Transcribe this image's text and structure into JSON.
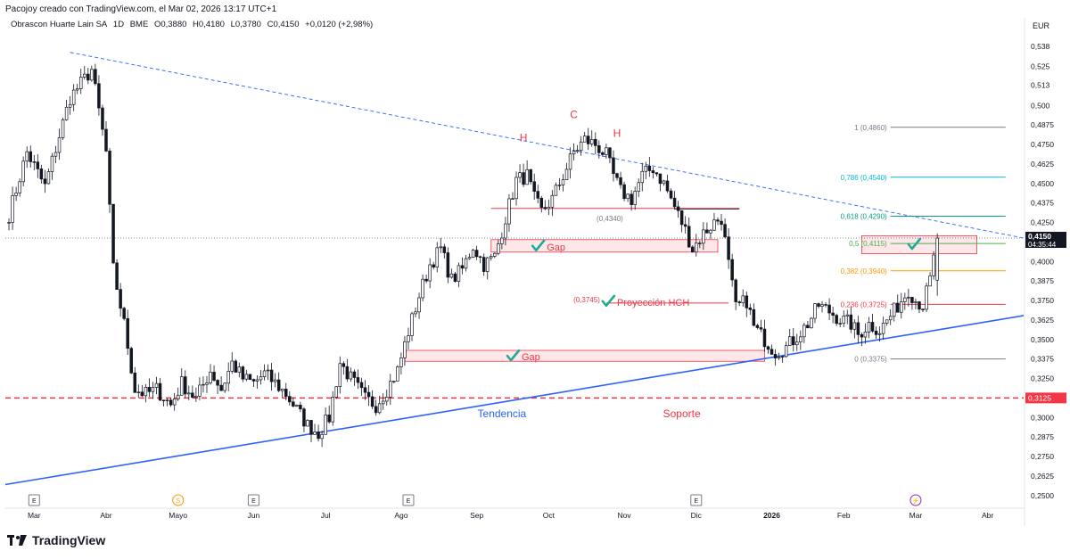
{
  "header": {
    "title": "Pacojoy creado con TradingView.com, el Mar 02, 2026 13:17 UTC+1",
    "symbol": "Obrascon Huarte Lain SA",
    "interval": "1D",
    "exchange": "BME",
    "open": "O0,3880",
    "high": "H0,4180",
    "low": "L0,3780",
    "close": "C0,4150",
    "change": "+0,0120 (+2,98%)"
  },
  "currency": "EUR",
  "current_price_label": "0,4150",
  "countdown_label": "04:35:44",
  "support_price_label": "0,3125",
  "brand": "TradingView",
  "colors": {
    "up": "#131722",
    "down": "#131722",
    "trend": "#2962ff",
    "support": "#f23645",
    "gap_fill": "rgba(242,54,69,0.12)",
    "gap_border": "#f23645",
    "check": "#22ab94",
    "annotation_red": "#f23645",
    "fib_1": "#787b86",
    "fib_786": "#00bcd4",
    "fib_618": "#089981",
    "fib_05": "#4caf50",
    "fib_382": "#ff9800",
    "fib_236": "#f23645",
    "fib_0": "#787b86"
  },
  "chart_data": {
    "type": "candlestick",
    "title": "Obrascon Huarte Lain SA · 1D · BME",
    "ylim": [
      0.243,
      0.547
    ],
    "y_ticks": [
      "0,538",
      "0,525",
      "0,513",
      "0,500",
      "0,4875",
      "0,4750",
      "0,4625",
      "0,4500",
      "0,4375",
      "0,4250",
      "0,4000",
      "0,3875",
      "0,3750",
      "0,3625",
      "0,3500",
      "0,3375",
      "0,3250",
      "0,3000",
      "0,2875",
      "0,2750",
      "0,2625",
      "0,2500"
    ],
    "y_tick_values": [
      0.538,
      0.525,
      0.513,
      0.5,
      0.4875,
      0.475,
      0.4625,
      0.45,
      0.4375,
      0.425,
      0.4,
      0.3875,
      0.375,
      0.3625,
      0.35,
      0.3375,
      0.325,
      0.3,
      0.2875,
      0.275,
      0.2625,
      0.25
    ],
    "x_labels": [
      "Mar",
      "Abr",
      "Mayo",
      "Jun",
      "Jul",
      "Ago",
      "Sep",
      "Oct",
      "Nov",
      "Dic",
      "2026",
      "Feb",
      "Mar",
      "Abr"
    ],
    "x_label_days": [
      0,
      20,
      40,
      61,
      81,
      102,
      123,
      143,
      164,
      184,
      205,
      225,
      245,
      265
    ],
    "x_range_days": [
      -8,
      275
    ],
    "key_points": [
      [
        -7,
        0.43
      ],
      [
        -2,
        0.47
      ],
      [
        3,
        0.448
      ],
      [
        10,
        0.505
      ],
      [
        16,
        0.523
      ],
      [
        20,
        0.47
      ],
      [
        22,
        0.395
      ],
      [
        25,
        0.36
      ],
      [
        28,
        0.318
      ],
      [
        31,
        0.315
      ],
      [
        34,
        0.318
      ],
      [
        38,
        0.308
      ],
      [
        41,
        0.322
      ],
      [
        45,
        0.312
      ],
      [
        49,
        0.33
      ],
      [
        52,
        0.318
      ],
      [
        55,
        0.335
      ],
      [
        58,
        0.325
      ],
      [
        61,
        0.322
      ],
      [
        64,
        0.328
      ],
      [
        67,
        0.322
      ],
      [
        70,
        0.315
      ],
      [
        73,
        0.305
      ],
      [
        76,
        0.295
      ],
      [
        79,
        0.29
      ],
      [
        82,
        0.3
      ],
      [
        85,
        0.335
      ],
      [
        88,
        0.325
      ],
      [
        92,
        0.312
      ],
      [
        95,
        0.308
      ],
      [
        98,
        0.318
      ],
      [
        101,
        0.33
      ],
      [
        104,
        0.355
      ],
      [
        107,
        0.378
      ],
      [
        110,
        0.398
      ],
      [
        113,
        0.408
      ],
      [
        116,
        0.388
      ],
      [
        119,
        0.395
      ],
      [
        122,
        0.41
      ],
      [
        125,
        0.398
      ],
      [
        128,
        0.403
      ],
      [
        131,
        0.428
      ],
      [
        134,
        0.452
      ],
      [
        137,
        0.455
      ],
      [
        139,
        0.44
      ],
      [
        141,
        0.432
      ],
      [
        144,
        0.44
      ],
      [
        147,
        0.455
      ],
      [
        150,
        0.47
      ],
      [
        153,
        0.478
      ],
      [
        156,
        0.475
      ],
      [
        159,
        0.468
      ],
      [
        161,
        0.455
      ],
      [
        163,
        0.445
      ],
      [
        166,
        0.44
      ],
      [
        169,
        0.455
      ],
      [
        172,
        0.46
      ],
      [
        175,
        0.45
      ],
      [
        178,
        0.435
      ],
      [
        181,
        0.42
      ],
      [
        183,
        0.408
      ],
      [
        186,
        0.418
      ],
      [
        189,
        0.425
      ],
      [
        191,
        0.428
      ],
      [
        193,
        0.398
      ],
      [
        195,
        0.37
      ],
      [
        198,
        0.375
      ],
      [
        200,
        0.358
      ],
      [
        203,
        0.35
      ],
      [
        206,
        0.342
      ],
      [
        209,
        0.345
      ],
      [
        212,
        0.352
      ],
      [
        215,
        0.36
      ],
      [
        218,
        0.372
      ],
      [
        221,
        0.368
      ],
      [
        224,
        0.363
      ],
      [
        227,
        0.36
      ],
      [
        229,
        0.353
      ],
      [
        232,
        0.36
      ],
      [
        235,
        0.356
      ],
      [
        238,
        0.365
      ],
      [
        241,
        0.375
      ],
      [
        243,
        0.382
      ],
      [
        245,
        0.375
      ],
      [
        247,
        0.372
      ],
      [
        249,
        0.388
      ],
      [
        251,
        0.415
      ]
    ],
    "last_candle": {
      "open": 0.388,
      "high": 0.418,
      "low": 0.378,
      "close": 0.415
    },
    "fibonacci": [
      {
        "label": "1 (0,4860)",
        "value": 0.486,
        "color_key": "fib_1"
      },
      {
        "label": "0,786 (0,4540)",
        "value": 0.454,
        "color_key": "fib_786"
      },
      {
        "label": "0,618 (0,4290)",
        "value": 0.429,
        "color_key": "fib_618"
      },
      {
        "label": "0,5 (0,4115)",
        "value": 0.4115,
        "color_key": "fib_05"
      },
      {
        "label": "0,382 (0,3940)",
        "value": 0.394,
        "color_key": "fib_382"
      },
      {
        "label": "0,236 (0,3725)",
        "value": 0.3725,
        "color_key": "fib_236"
      },
      {
        "label": "0 (0,3375)",
        "value": 0.3375,
        "color_key": "fib_0"
      }
    ],
    "trend_line": {
      "label": "Tendencia",
      "from": [
        -8,
        0.257
      ],
      "to": [
        275,
        0.3653
      ]
    },
    "upper_trend_line": {
      "from": [
        10,
        0.534
      ],
      "to": [
        275,
        0.415
      ]
    },
    "support_level": {
      "label": "Soporte",
      "value": 0.3125
    },
    "current_price_line": 0.415,
    "neckline": {
      "from": [
        127,
        0.434
      ],
      "to": [
        196,
        0.434
      ],
      "label": "(0,4340)",
      "label_day": 160
    },
    "gaps": [
      {
        "label": "Gap",
        "from_day": 127,
        "to_day": 190,
        "low": 0.406,
        "high": 0.414
      },
      {
        "label": "Gap",
        "from_day": 103,
        "to_day": 203,
        "low": 0.336,
        "high": 0.343
      },
      {
        "label": "",
        "from_day": 230,
        "to_day": 262,
        "low": 0.405,
        "high": 0.4165
      }
    ],
    "projection": {
      "label": "Proyección HCH",
      "price_label": "(0,3745)",
      "day": 161,
      "value": 0.3745
    },
    "pattern_labels": [
      {
        "label": "H",
        "day": 136,
        "value": 0.477
      },
      {
        "label": "C",
        "day": 150,
        "value": 0.492
      },
      {
        "label": "H",
        "day": 162,
        "value": 0.48
      }
    ],
    "event_markers": [
      {
        "symbol": "E",
        "day": 0
      },
      {
        "symbol": "S",
        "day": 40
      },
      {
        "symbol": "E",
        "day": 61
      },
      {
        "symbol": "E",
        "day": 104
      },
      {
        "symbol": "E",
        "day": 184
      },
      {
        "symbol": "⚡",
        "day": 245
      }
    ]
  }
}
